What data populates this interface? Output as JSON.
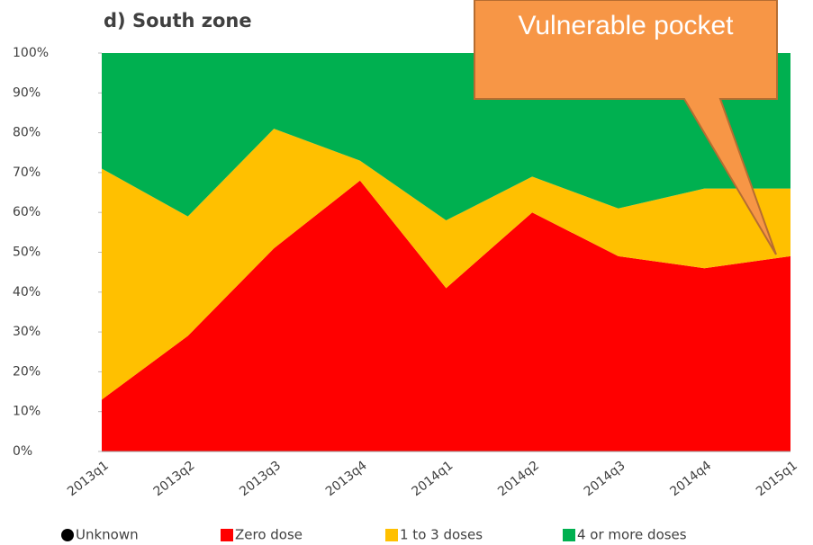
{
  "chart_data": {
    "type": "stacked_area",
    "title": "d) South zone",
    "annotation": "Vulnerable pocket",
    "categories": [
      "2013q1",
      "2013q2",
      "2013q3",
      "2013q4",
      "2014q1",
      "2014q2",
      "2014q3",
      "2014q4",
      "2015q1"
    ],
    "series": [
      {
        "name": "Unknown",
        "color": "#000000",
        "values": [
          0,
          0,
          0,
          0,
          0,
          0,
          0,
          0,
          0
        ]
      },
      {
        "name": "Zero dose",
        "color": "#ff0000",
        "values": [
          13,
          29,
          51,
          68,
          41,
          60,
          49,
          46,
          49
        ]
      },
      {
        "name": "1 to 3 doses",
        "color": "#ffc000",
        "values": [
          58,
          30,
          30,
          5,
          17,
          9,
          12,
          20,
          17
        ]
      },
      {
        "name": "4 or more doses",
        "color": "#00b050",
        "values": [
          29,
          41,
          19,
          27,
          42,
          31,
          39,
          34,
          34
        ]
      }
    ],
    "ylim": [
      0,
      100
    ],
    "yticks": [
      {
        "value": 0,
        "label": "0%"
      },
      {
        "value": 10,
        "label": "10%"
      },
      {
        "value": 20,
        "label": "20%"
      },
      {
        "value": 30,
        "label": "30%"
      },
      {
        "value": 40,
        "label": "40%"
      },
      {
        "value": 50,
        "label": "50%"
      },
      {
        "value": 60,
        "label": "60%"
      },
      {
        "value": 70,
        "label": "70%"
      },
      {
        "value": 80,
        "label": "80%"
      },
      {
        "value": 90,
        "label": "90%"
      },
      {
        "value": 100,
        "label": "100%"
      }
    ]
  }
}
